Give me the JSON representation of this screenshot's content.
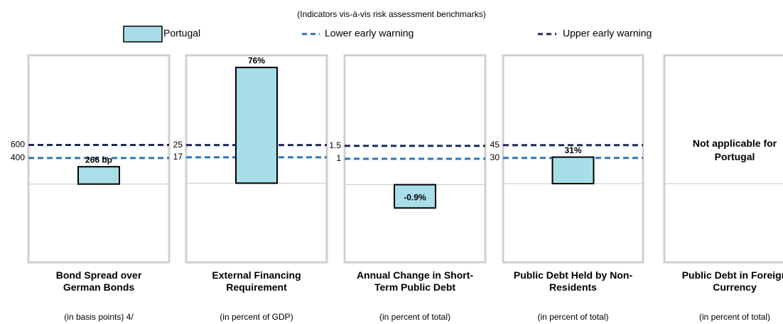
{
  "subtitle": "(Indicators vis-à-vis risk assessment benchmarks)",
  "legend": {
    "bar": {
      "name": "Portugal",
      "color": "#a8dee8"
    },
    "lower": {
      "name": "Lower early warning",
      "color": "#2e75b6"
    },
    "upper": {
      "name": "Upper early warning",
      "color": "#1f2a5c"
    }
  },
  "chart_data": [
    {
      "type": "bar",
      "title": "Bond Spread over German Bonds",
      "subtitle": "(in basis points) 4/",
      "values": [
        266
      ],
      "value_labels": [
        "266 bp"
      ],
      "ylim": [
        -1200,
        1975
      ],
      "yticks": [
        400,
        600
      ]
    },
    {
      "type": "bar",
      "title": "External Financing Requirement",
      "subtitle": "(in percent of GDP)",
      "values": [
        76
      ],
      "value_labels": [
        "76%"
      ],
      "ylim": [
        -52,
        84
      ],
      "yticks": [
        17,
        25
      ]
    },
    {
      "type": "bar",
      "title": "Annual Change in Short-Term Public Debt",
      "subtitle": "(in percent of total)",
      "values": [
        -0.9
      ],
      "value_labels": [
        "-0.9%"
      ],
      "ylim": [
        -3,
        5
      ],
      "yticks": [
        1,
        1.5
      ]
    },
    {
      "type": "bar",
      "title": "Public Debt Held by Non-Residents",
      "subtitle": "(in percent of total)",
      "values": [
        31
      ],
      "value_labels": [
        "31%"
      ],
      "ylim": [
        -92,
        150
      ],
      "yticks": [
        30,
        45
      ]
    },
    {
      "type": "note",
      "title": "Public Debt in Foreign Currency",
      "subtitle": "(in percent of total)",
      "note": "Not applicable for Portugal"
    }
  ]
}
